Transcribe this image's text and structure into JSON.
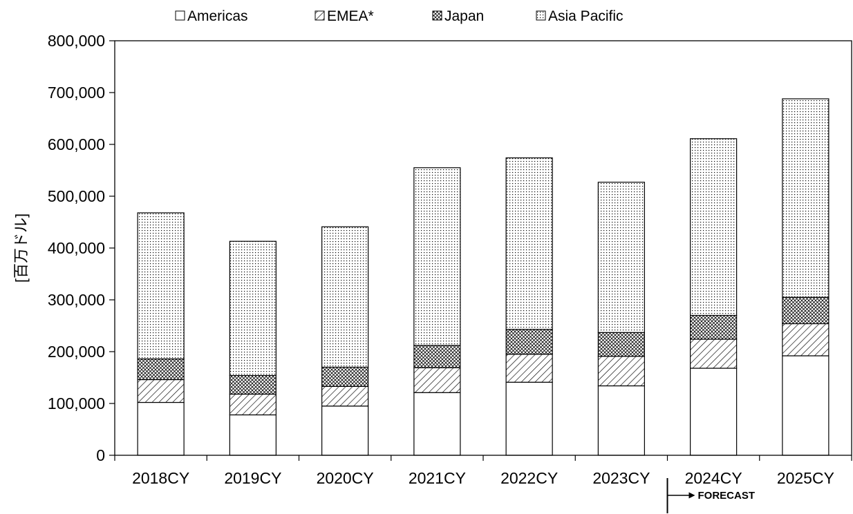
{
  "chart_data": {
    "type": "bar",
    "stacked": true,
    "categories": [
      "2018CY",
      "2019CY",
      "2020CY",
      "2021CY",
      "2022CY",
      "2023CY",
      "2024CY",
      "2025CY"
    ],
    "series": [
      {
        "name": "Americas",
        "values": [
          102000,
          78000,
          95000,
          121000,
          141000,
          134000,
          168000,
          192000
        ]
      },
      {
        "name": "EMEA*",
        "values": [
          44000,
          40000,
          38000,
          48000,
          54000,
          57000,
          56000,
          62000
        ]
      },
      {
        "name": "Japan",
        "values": [
          40000,
          36000,
          37000,
          43000,
          48000,
          46000,
          46000,
          51000
        ]
      },
      {
        "name": "Asia Pacific",
        "values": [
          282000,
          259000,
          271000,
          343000,
          331000,
          290000,
          341000,
          383000
        ]
      }
    ],
    "ylabel": "[百万ドル]",
    "ylim": [
      0,
      800000
    ],
    "yticks": [
      0,
      100000,
      200000,
      300000,
      400000,
      500000,
      600000,
      700000,
      800000
    ],
    "ytick_labels": [
      "0",
      "100,000",
      "200,000",
      "300,000",
      "400,000",
      "500,000",
      "600,000",
      "700,000",
      "800,000"
    ],
    "grid": false,
    "legend_position": "top",
    "annotation": {
      "text": "FORECAST",
      "start_category": "2024CY"
    }
  }
}
